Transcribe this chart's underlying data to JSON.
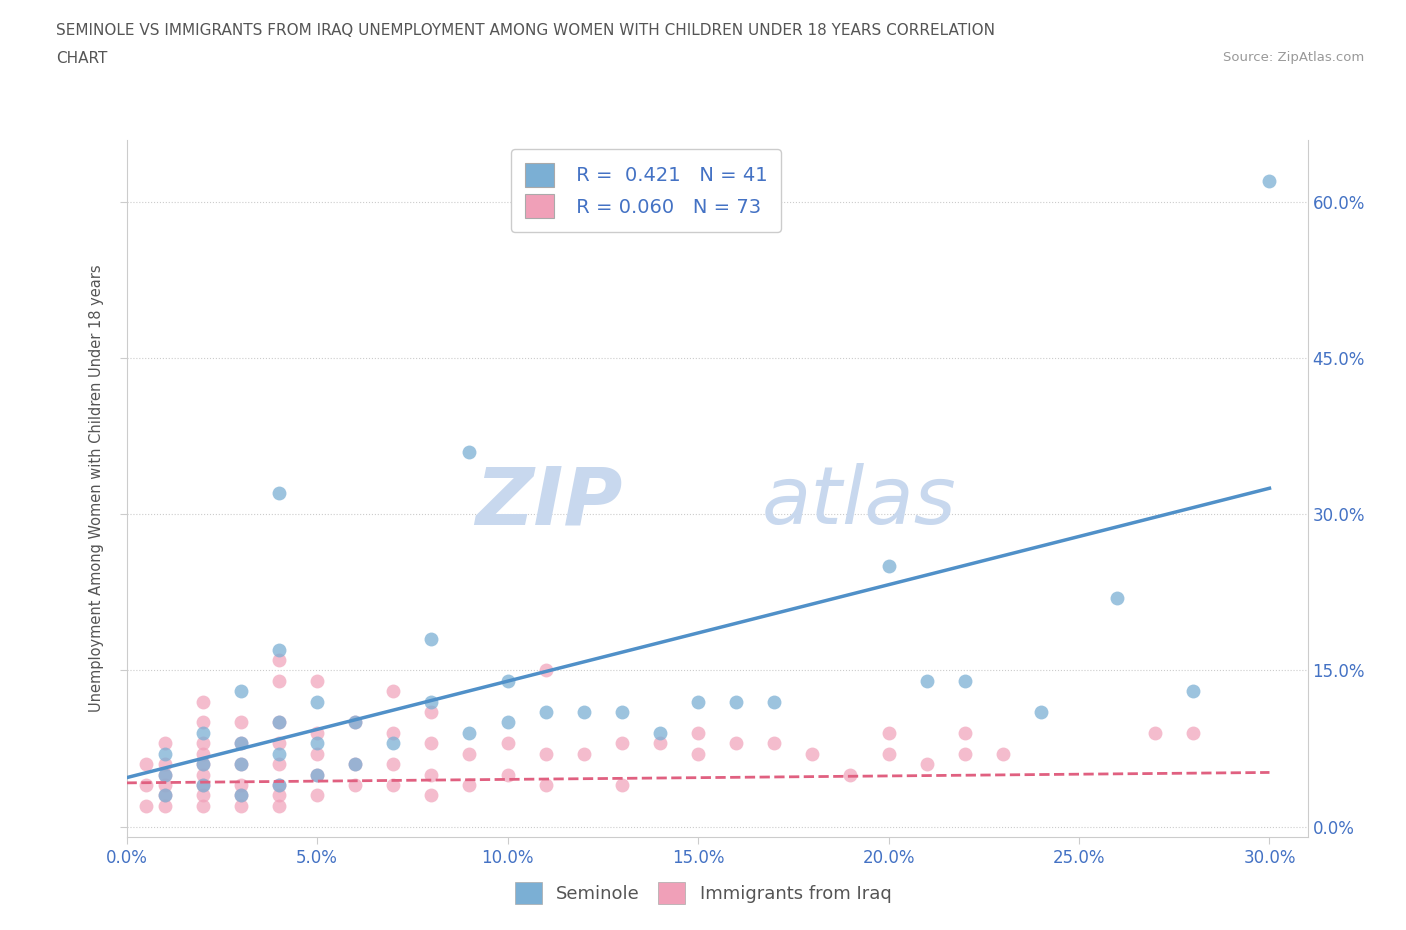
{
  "title_line1": "SEMINOLE VS IMMIGRANTS FROM IRAQ UNEMPLOYMENT AMONG WOMEN WITH CHILDREN UNDER 18 YEARS CORRELATION",
  "title_line2": "CHART",
  "source_text": "Source: ZipAtlas.com",
  "ylabel": "Unemployment Among Women with Children Under 18 years",
  "xlim": [
    0.0,
    0.31
  ],
  "ylim": [
    -0.01,
    0.66
  ],
  "seminole_color": "#7bafd4",
  "iraq_color": "#f0a0b8",
  "seminole_line_color": "#5090c8",
  "iraq_line_color": "#e06080",
  "seminole_R": 0.421,
  "seminole_N": 41,
  "iraq_R": 0.06,
  "iraq_N": 73,
  "legend_blue_label": "Seminole",
  "legend_pink_label": "Immigrants from Iraq",
  "x_ticks": [
    0.0,
    0.05,
    0.1,
    0.15,
    0.2,
    0.25,
    0.3
  ],
  "y_ticks": [
    0.0,
    0.15,
    0.3,
    0.45,
    0.6
  ],
  "seminole_scatter_x": [
    0.01,
    0.01,
    0.01,
    0.02,
    0.02,
    0.02,
    0.03,
    0.03,
    0.03,
    0.03,
    0.04,
    0.04,
    0.04,
    0.04,
    0.04,
    0.05,
    0.05,
    0.05,
    0.06,
    0.06,
    0.07,
    0.08,
    0.08,
    0.09,
    0.09,
    0.1,
    0.1,
    0.11,
    0.12,
    0.13,
    0.14,
    0.15,
    0.16,
    0.17,
    0.2,
    0.21,
    0.22,
    0.24,
    0.26,
    0.28,
    0.3
  ],
  "seminole_scatter_y": [
    0.03,
    0.05,
    0.07,
    0.04,
    0.06,
    0.09,
    0.03,
    0.06,
    0.08,
    0.13,
    0.04,
    0.07,
    0.1,
    0.17,
    0.32,
    0.05,
    0.08,
    0.12,
    0.06,
    0.1,
    0.08,
    0.12,
    0.18,
    0.09,
    0.36,
    0.1,
    0.14,
    0.11,
    0.11,
    0.11,
    0.09,
    0.12,
    0.12,
    0.12,
    0.25,
    0.14,
    0.14,
    0.11,
    0.22,
    0.13,
    0.62
  ],
  "iraq_scatter_x": [
    0.005,
    0.005,
    0.005,
    0.01,
    0.01,
    0.01,
    0.01,
    0.01,
    0.01,
    0.02,
    0.02,
    0.02,
    0.02,
    0.02,
    0.02,
    0.02,
    0.02,
    0.02,
    0.03,
    0.03,
    0.03,
    0.03,
    0.03,
    0.03,
    0.04,
    0.04,
    0.04,
    0.04,
    0.04,
    0.04,
    0.04,
    0.04,
    0.05,
    0.05,
    0.05,
    0.05,
    0.05,
    0.06,
    0.06,
    0.06,
    0.07,
    0.07,
    0.07,
    0.07,
    0.08,
    0.08,
    0.08,
    0.08,
    0.09,
    0.09,
    0.1,
    0.1,
    0.11,
    0.11,
    0.11,
    0.12,
    0.13,
    0.13,
    0.14,
    0.15,
    0.15,
    0.16,
    0.17,
    0.18,
    0.19,
    0.2,
    0.2,
    0.21,
    0.22,
    0.22,
    0.23,
    0.27,
    0.28
  ],
  "iraq_scatter_y": [
    0.02,
    0.04,
    0.06,
    0.02,
    0.03,
    0.04,
    0.05,
    0.06,
    0.08,
    0.02,
    0.03,
    0.04,
    0.05,
    0.06,
    0.07,
    0.08,
    0.1,
    0.12,
    0.02,
    0.03,
    0.04,
    0.06,
    0.08,
    0.1,
    0.02,
    0.03,
    0.04,
    0.06,
    0.08,
    0.1,
    0.14,
    0.16,
    0.03,
    0.05,
    0.07,
    0.09,
    0.14,
    0.04,
    0.06,
    0.1,
    0.04,
    0.06,
    0.09,
    0.13,
    0.03,
    0.05,
    0.08,
    0.11,
    0.04,
    0.07,
    0.05,
    0.08,
    0.04,
    0.07,
    0.15,
    0.07,
    0.04,
    0.08,
    0.08,
    0.07,
    0.09,
    0.08,
    0.08,
    0.07,
    0.05,
    0.07,
    0.09,
    0.06,
    0.07,
    0.09,
    0.07,
    0.09,
    0.09
  ],
  "seminole_line_x0": 0.0,
  "seminole_line_y0": 0.047,
  "seminole_line_x1": 0.3,
  "seminole_line_y1": 0.325,
  "iraq_line_x0": 0.0,
  "iraq_line_y0": 0.042,
  "iraq_line_x1": 0.3,
  "iraq_line_y1": 0.052
}
